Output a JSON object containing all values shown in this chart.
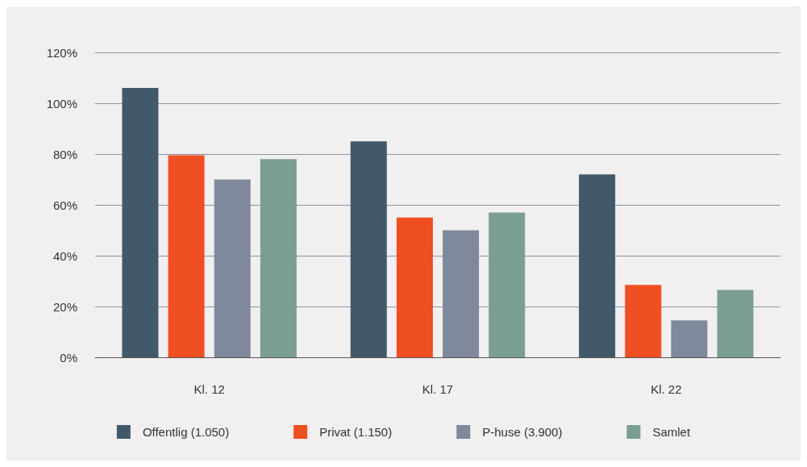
{
  "chart_data": {
    "type": "bar",
    "categories": [
      "Kl. 12",
      "Kl. 17",
      "Kl. 22"
    ],
    "series": [
      {
        "name": "Offentlig (1.050)",
        "color": "#42596a",
        "values": [
          106,
          85,
          72
        ]
      },
      {
        "name": "Privat (1.150)",
        "color": "#f04e23",
        "values": [
          79.5,
          55,
          28.5
        ]
      },
      {
        "name": "P-huse (3.900)",
        "color": "#7f899b",
        "values": [
          70,
          50,
          14.5
        ]
      },
      {
        "name": "Samlet",
        "color": "#7b9e94",
        "values": [
          78,
          57,
          26.5
        ]
      }
    ],
    "ylim": [
      0,
      120
    ],
    "yticks": [
      {
        "value": 0,
        "label": "0%"
      },
      {
        "value": 20,
        "label": "20%"
      },
      {
        "value": 40,
        "label": "40%"
      },
      {
        "value": 60,
        "label": "60%"
      },
      {
        "value": 80,
        "label": "80%"
      },
      {
        "value": 100,
        "label": "100%"
      },
      {
        "value": 120,
        "label": "120%"
      }
    ],
    "grid": "y",
    "legend": "bottom"
  }
}
